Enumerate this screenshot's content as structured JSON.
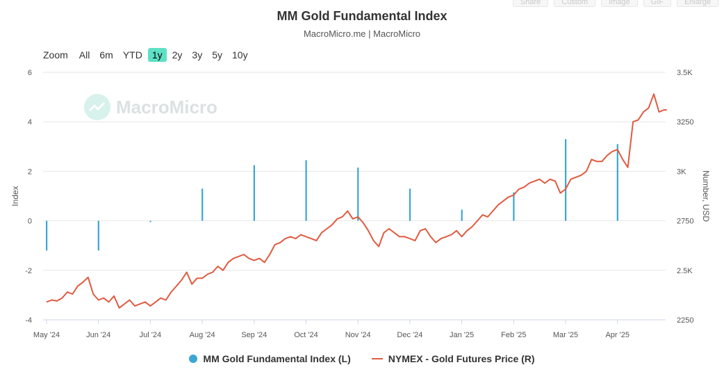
{
  "toolbar": {
    "items": [
      "Share",
      "Custom",
      "Image",
      "GIF",
      "Enlarge"
    ]
  },
  "header": {
    "title": "MM Gold Fundamental Index",
    "subtitle": "MacroMicro.me | MacroMicro"
  },
  "zoom": {
    "label": "Zoom",
    "options": [
      "All",
      "6m",
      "YTD",
      "1y",
      "2y",
      "3y",
      "5y",
      "10y"
    ],
    "active": "1y"
  },
  "watermark": "MacroMicro",
  "legend": {
    "index_label": "MM Gold Fundamental Index (L)",
    "price_label": "NYMEX - Gold Futures Price (R)"
  },
  "colors": {
    "index": "#3aa6d4",
    "price": "#e05a3f",
    "grid": "#e6e6e6",
    "zoom_active": "#5ee0c5"
  },
  "chart_data": {
    "type": "bar+line",
    "title": "MM Gold Fundamental Index",
    "subtitle": "MacroMicro.me | MacroMicro",
    "x_range": [
      0,
      12.0
    ],
    "x_ticks": [
      {
        "pos": 0,
        "label": "May '24"
      },
      {
        "pos": 1,
        "label": "Jun '24"
      },
      {
        "pos": 2,
        "label": "Jul '24"
      },
      {
        "pos": 3,
        "label": "Aug '24"
      },
      {
        "pos": 4,
        "label": "Sep '24"
      },
      {
        "pos": 5,
        "label": "Oct '24"
      },
      {
        "pos": 6,
        "label": "Nov '24"
      },
      {
        "pos": 7,
        "label": "Dec '24"
      },
      {
        "pos": 8,
        "label": "Jan '25"
      },
      {
        "pos": 9,
        "label": "Feb '25"
      },
      {
        "pos": 10,
        "label": "Mar '25"
      },
      {
        "pos": 11,
        "label": "Apr '25"
      }
    ],
    "left_axis": {
      "label": "Index",
      "ylim": [
        -4,
        6
      ],
      "ticks": [
        {
          "value": -4,
          "label": "-4"
        },
        {
          "value": -2,
          "label": "-2"
        },
        {
          "value": 0,
          "label": "0"
        },
        {
          "value": 2,
          "label": "2"
        },
        {
          "value": 4,
          "label": "4"
        },
        {
          "value": 6,
          "label": "6"
        }
      ]
    },
    "right_axis": {
      "label": "Number, USD",
      "ylim": [
        2250,
        3500
      ],
      "ticks": [
        {
          "value": 2250,
          "label": "2250"
        },
        {
          "value": 2500,
          "label": "2.5K"
        },
        {
          "value": 2750,
          "label": "2750"
        },
        {
          "value": 3000,
          "label": "3K"
        },
        {
          "value": 3250,
          "label": "3250"
        },
        {
          "value": 3500,
          "label": "3.5K"
        }
      ]
    },
    "series": [
      {
        "name": "MM Gold Fundamental Index (L)",
        "type": "bar",
        "axis": "left",
        "x": [
          0,
          1,
          2,
          3,
          4,
          5,
          6,
          7,
          8,
          9,
          10,
          11
        ],
        "values": [
          -1.2,
          -1.2,
          -0.05,
          1.3,
          2.25,
          2.45,
          2.15,
          1.3,
          0.45,
          1.15,
          3.3,
          3.1
        ]
      },
      {
        "name": "NYMEX - Gold Futures Price (R)",
        "type": "line",
        "axis": "right",
        "x": [
          0,
          0.1,
          0.2,
          0.3,
          0.4,
          0.5,
          0.6,
          0.7,
          0.8,
          0.9,
          1.0,
          1.1,
          1.2,
          1.3,
          1.4,
          1.5,
          1.6,
          1.7,
          1.8,
          1.9,
          2.0,
          2.1,
          2.2,
          2.3,
          2.4,
          2.5,
          2.6,
          2.7,
          2.8,
          2.9,
          3.0,
          3.1,
          3.2,
          3.3,
          3.4,
          3.5,
          3.6,
          3.7,
          3.8,
          3.9,
          4.0,
          4.1,
          4.2,
          4.3,
          4.4,
          4.5,
          4.6,
          4.7,
          4.8,
          4.9,
          5.0,
          5.1,
          5.2,
          5.3,
          5.4,
          5.5,
          5.6,
          5.7,
          5.8,
          5.9,
          6.0,
          6.1,
          6.2,
          6.3,
          6.4,
          6.5,
          6.6,
          6.7,
          6.8,
          6.9,
          7.0,
          7.1,
          7.2,
          7.3,
          7.4,
          7.5,
          7.6,
          7.7,
          7.8,
          7.9,
          8.0,
          8.1,
          8.2,
          8.3,
          8.4,
          8.5,
          8.6,
          8.7,
          8.8,
          8.9,
          9.0,
          9.1,
          9.2,
          9.3,
          9.4,
          9.5,
          9.6,
          9.7,
          9.8,
          9.9,
          10.0,
          10.1,
          10.2,
          10.3,
          10.4,
          10.5,
          10.6,
          10.7,
          10.8,
          10.9,
          11.0,
          11.1,
          11.2,
          11.3,
          11.4,
          11.5,
          11.6,
          11.7,
          11.8,
          11.9,
          11.95
        ],
        "values": [
          2340,
          2350,
          2345,
          2360,
          2390,
          2380,
          2420,
          2440,
          2465,
          2380,
          2350,
          2360,
          2340,
          2370,
          2310,
          2330,
          2350,
          2320,
          2330,
          2340,
          2320,
          2340,
          2360,
          2350,
          2390,
          2420,
          2450,
          2490,
          2430,
          2460,
          2460,
          2480,
          2490,
          2520,
          2500,
          2540,
          2560,
          2570,
          2580,
          2560,
          2550,
          2560,
          2540,
          2580,
          2630,
          2640,
          2660,
          2670,
          2660,
          2680,
          2670,
          2660,
          2650,
          2690,
          2710,
          2730,
          2760,
          2770,
          2800,
          2760,
          2770,
          2740,
          2700,
          2650,
          2620,
          2690,
          2710,
          2690,
          2670,
          2670,
          2660,
          2650,
          2700,
          2710,
          2670,
          2640,
          2660,
          2670,
          2680,
          2700,
          2670,
          2700,
          2720,
          2750,
          2780,
          2770,
          2800,
          2830,
          2850,
          2870,
          2880,
          2910,
          2920,
          2940,
          2950,
          2960,
          2940,
          2960,
          2950,
          2890,
          2910,
          2960,
          2970,
          2980,
          3000,
          3060,
          3050,
          3050,
          3080,
          3100,
          3110,
          3060,
          3020,
          3250,
          3260,
          3300,
          3320,
          3390,
          3300,
          3310,
          3310
        ]
      }
    ]
  }
}
